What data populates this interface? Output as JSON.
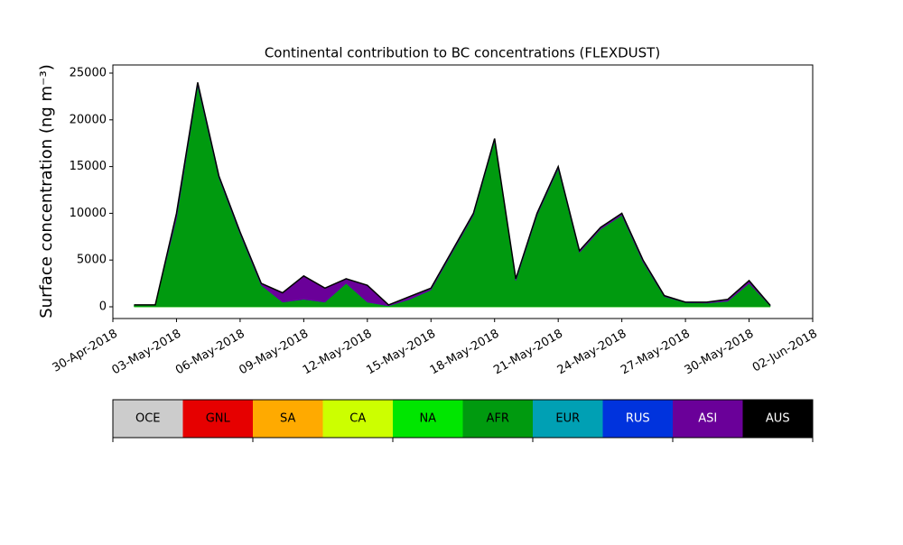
{
  "chart_data": {
    "type": "stacked_area",
    "title": "Continental contribution to BC concentrations (FLEXDUST)",
    "y_label": "Surface concentration (ng m⁻³)",
    "x": [
      "2018-05-01",
      "2018-05-02",
      "2018-05-03",
      "2018-05-04",
      "2018-05-05",
      "2018-05-06",
      "2018-05-07",
      "2018-05-08",
      "2018-05-09",
      "2018-05-10",
      "2018-05-11",
      "2018-05-12",
      "2018-05-13",
      "2018-05-14",
      "2018-05-15",
      "2018-05-16",
      "2018-05-17",
      "2018-05-18",
      "2018-05-19",
      "2018-05-20",
      "2018-05-21",
      "2018-05-22",
      "2018-05-23",
      "2018-05-24",
      "2018-05-25",
      "2018-05-26",
      "2018-05-27",
      "2018-05-28",
      "2018-05-29",
      "2018-05-30",
      "2018-05-31"
    ],
    "xlim": [
      "2018-04-30",
      "2018-06-02"
    ],
    "xticks": [
      {
        "value": "2018-04-30",
        "label": "30-Apr-2018"
      },
      {
        "value": "2018-05-03",
        "label": "03-May-2018"
      },
      {
        "value": "2018-05-06",
        "label": "06-May-2018"
      },
      {
        "value": "2018-05-09",
        "label": "09-May-2018"
      },
      {
        "value": "2018-05-12",
        "label": "12-May-2018"
      },
      {
        "value": "2018-05-15",
        "label": "15-May-2018"
      },
      {
        "value": "2018-05-18",
        "label": "18-May-2018"
      },
      {
        "value": "2018-05-21",
        "label": "21-May-2018"
      },
      {
        "value": "2018-05-24",
        "label": "24-May-2018"
      },
      {
        "value": "2018-05-27",
        "label": "27-May-2018"
      },
      {
        "value": "2018-05-30",
        "label": "30-May-2018"
      },
      {
        "value": "2018-06-02",
        "label": "02-Jun-2018"
      }
    ],
    "ylim": [
      -1255,
      25870
    ],
    "yticks": [
      0,
      5000,
      10000,
      15000,
      20000,
      25000
    ],
    "series": [
      {
        "name": "OCE",
        "color": "#cccccc",
        "values": [
          0,
          0,
          0,
          0,
          0,
          0,
          0,
          0,
          0,
          0,
          0,
          0,
          0,
          0,
          0,
          0,
          0,
          0,
          0,
          0,
          0,
          0,
          0,
          0,
          0,
          0,
          0,
          0,
          0,
          0,
          0
        ]
      },
      {
        "name": "GNL",
        "color": "#e60000",
        "values": [
          0,
          0,
          0,
          0,
          0,
          0,
          0,
          0,
          0,
          0,
          0,
          0,
          0,
          0,
          0,
          0,
          0,
          0,
          0,
          0,
          0,
          0,
          0,
          0,
          0,
          0,
          0,
          0,
          0,
          0,
          0
        ]
      },
      {
        "name": "SA",
        "color": "#ffaa00",
        "values": [
          0,
          0,
          0,
          0,
          0,
          0,
          0,
          0,
          0,
          0,
          0,
          0,
          0,
          0,
          0,
          0,
          0,
          0,
          0,
          0,
          0,
          0,
          0,
          0,
          0,
          0,
          0,
          0,
          0,
          0,
          0
        ]
      },
      {
        "name": "CA",
        "color": "#ccff00",
        "values": [
          0,
          0,
          0,
          0,
          0,
          0,
          0,
          0,
          0,
          0,
          0,
          0,
          0,
          0,
          0,
          0,
          0,
          0,
          0,
          0,
          0,
          0,
          0,
          0,
          0,
          0,
          0,
          0,
          0,
          0,
          0
        ]
      },
      {
        "name": "NA",
        "color": "#00e600",
        "values": [
          0,
          0,
          0,
          0,
          0,
          0,
          0,
          0,
          0,
          0,
          0,
          0,
          0,
          0,
          0,
          0,
          0,
          0,
          0,
          0,
          0,
          0,
          0,
          0,
          0,
          0,
          0,
          0,
          0,
          0,
          0
        ]
      },
      {
        "name": "AFR",
        "color": "#009a0f",
        "values": [
          200,
          200,
          9500,
          23700,
          13800,
          7800,
          2300,
          500,
          800,
          500,
          2500,
          500,
          100,
          800,
          1800,
          5800,
          9800,
          17800,
          2800,
          9800,
          14800,
          5800,
          8300,
          9800,
          4800,
          1100,
          450,
          400,
          600,
          2500,
          100
        ]
      },
      {
        "name": "EUR",
        "color": "#00a0b4",
        "values": [
          0,
          0,
          0,
          0,
          0,
          0,
          0,
          0,
          0,
          0,
          0,
          0,
          0,
          0,
          0,
          0,
          0,
          0,
          0,
          0,
          0,
          0,
          0,
          0,
          0,
          0,
          0,
          0,
          0,
          0,
          0
        ]
      },
      {
        "name": "RUS",
        "color": "#0033dd",
        "values": [
          0,
          0,
          0,
          0,
          0,
          0,
          0,
          0,
          0,
          0,
          0,
          0,
          0,
          0,
          0,
          0,
          0,
          0,
          0,
          0,
          0,
          0,
          0,
          0,
          0,
          0,
          0,
          0,
          0,
          0,
          0
        ]
      },
      {
        "name": "ASI",
        "color": "#6a0099",
        "values": [
          0,
          0,
          500,
          300,
          200,
          200,
          200,
          1000,
          2500,
          1500,
          500,
          1800,
          100,
          300,
          200,
          200,
          200,
          200,
          200,
          200,
          200,
          200,
          200,
          200,
          200,
          100,
          50,
          100,
          200,
          300,
          50
        ]
      },
      {
        "name": "AUS",
        "color": "#000000",
        "values": [
          0,
          0,
          0,
          0,
          0,
          0,
          0,
          0,
          0,
          0,
          0,
          0,
          0,
          0,
          0,
          0,
          0,
          0,
          0,
          0,
          0,
          0,
          0,
          0,
          0,
          0,
          0,
          0,
          0,
          0,
          0
        ]
      }
    ]
  }
}
